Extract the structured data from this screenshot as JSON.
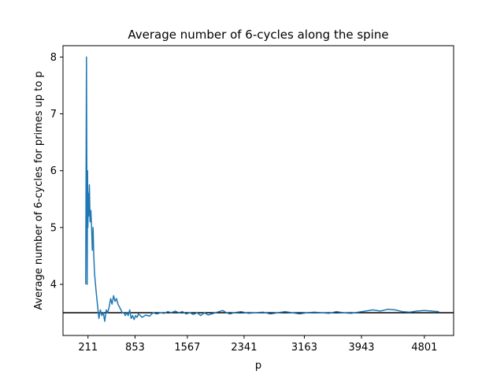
{
  "chart_data": {
    "type": "line",
    "title": "Average number of 6-cycles along the spine",
    "xlabel": "p",
    "ylabel": "Average number of 6-cycles for primes up to p",
    "xlim": [
      -130,
      5200
    ],
    "ylim": [
      3.1,
      8.2
    ],
    "x_ticks": [
      211,
      853,
      1567,
      2341,
      3163,
      3943,
      4801
    ],
    "x_tick_labels": [
      "211",
      "853",
      "1567",
      "2341",
      "3163",
      "3943",
      "4801"
    ],
    "y_ticks": [
      4,
      5,
      6,
      7,
      8
    ],
    "y_tick_labels": [
      "4",
      "5",
      "6",
      "7",
      "8"
    ],
    "grid": false,
    "reference_line": {
      "y": 3.5,
      "color": "#000000"
    },
    "series": [
      {
        "color": "#1f77b4",
        "x": [
          180,
          190,
          200,
          205,
          210,
          215,
          220,
          230,
          240,
          250,
          260,
          270,
          280,
          290,
          300,
          320,
          340,
          360,
          380,
          400,
          420,
          440,
          460,
          480,
          500,
          520,
          540,
          560,
          580,
          600,
          620,
          640,
          660,
          680,
          700,
          720,
          740,
          760,
          780,
          800,
          820,
          840,
          860,
          880,
          900,
          950,
          1000,
          1050,
          1100,
          1150,
          1200,
          1250,
          1300,
          1350,
          1400,
          1450,
          1500,
          1550,
          1600,
          1650,
          1700,
          1750,
          1800,
          1850,
          1900,
          1950,
          2000,
          2050,
          2100,
          2150,
          2200,
          2300,
          2400,
          2500,
          2600,
          2700,
          2800,
          2900,
          3000,
          3100,
          3200,
          3300,
          3400,
          3500,
          3600,
          3700,
          3800,
          3900,
          4000,
          4100,
          4200,
          4300,
          4400,
          4500,
          4600,
          4700,
          4800,
          4900,
          5000
        ],
        "y": [
          4.0,
          8.0,
          4.0,
          6.0,
          5.0,
          5.6,
          5.2,
          5.75,
          5.1,
          5.3,
          5.0,
          4.6,
          5.0,
          4.5,
          4.2,
          3.9,
          3.65,
          3.4,
          3.55,
          3.45,
          3.5,
          3.35,
          3.55,
          3.5,
          3.6,
          3.75,
          3.65,
          3.8,
          3.7,
          3.75,
          3.65,
          3.6,
          3.55,
          3.5,
          3.5,
          3.45,
          3.5,
          3.45,
          3.55,
          3.4,
          3.45,
          3.38,
          3.45,
          3.42,
          3.48,
          3.42,
          3.46,
          3.44,
          3.5,
          3.48,
          3.5,
          3.49,
          3.52,
          3.5,
          3.53,
          3.5,
          3.52,
          3.48,
          3.5,
          3.47,
          3.5,
          3.45,
          3.5,
          3.46,
          3.48,
          3.5,
          3.52,
          3.54,
          3.5,
          3.48,
          3.5,
          3.52,
          3.49,
          3.5,
          3.51,
          3.48,
          3.5,
          3.52,
          3.5,
          3.48,
          3.5,
          3.51,
          3.5,
          3.49,
          3.52,
          3.5,
          3.49,
          3.51,
          3.53,
          3.55,
          3.53,
          3.56,
          3.55,
          3.52,
          3.51,
          3.53,
          3.54,
          3.53,
          3.52
        ]
      }
    ]
  }
}
